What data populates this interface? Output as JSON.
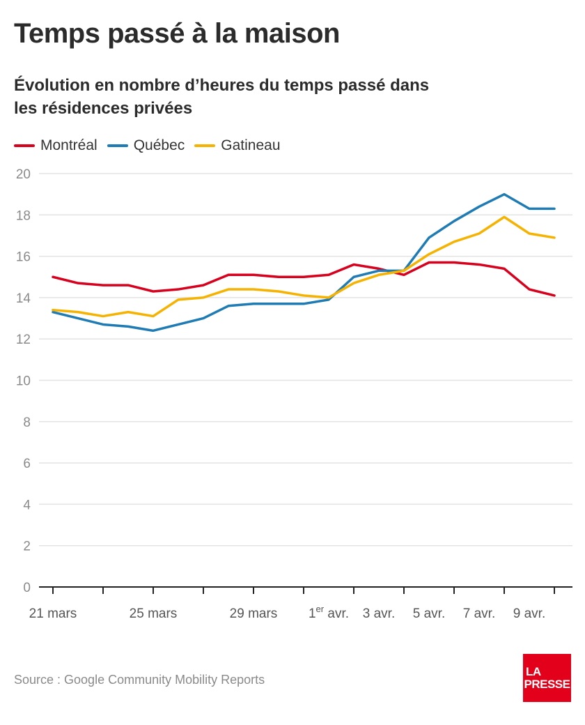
{
  "header": {
    "title": "Temps passé à la maison",
    "subtitle": "Évolution en nombre d’heures du temps passé dans les résidences privées"
  },
  "footer": {
    "source": "Source : Google Community Mobility Reports",
    "logo_line1": "LA",
    "logo_line2": "PRESSE"
  },
  "chart_data": {
    "type": "line",
    "title": "Temps passé à la maison",
    "subtitle": "Évolution en nombre d’heures du temps passé dans les résidences privées",
    "xlabel": "",
    "ylabel": "",
    "ylim": [
      0,
      20
    ],
    "yticks": [
      0,
      2,
      4,
      6,
      8,
      10,
      12,
      14,
      16,
      18,
      20
    ],
    "grid": true,
    "legend_position": "top-left",
    "x": [
      "21 mars",
      "22 mars",
      "23 mars",
      "24 mars",
      "25 mars",
      "26 mars",
      "27 mars",
      "28 mars",
      "29 mars",
      "30 mars",
      "31 mars",
      "1er avr.",
      "2 avr.",
      "3 avr.",
      "4 avr.",
      "5 avr.",
      "6 avr.",
      "7 avr.",
      "8 avr.",
      "9 avr.",
      "10 avr."
    ],
    "x_tick_marks": [
      0,
      2,
      4,
      6,
      8,
      10,
      12,
      14,
      16,
      18,
      20
    ],
    "x_tick_labels": [
      {
        "index": 0,
        "label": "21 mars"
      },
      {
        "index": 4,
        "label": "25 mars"
      },
      {
        "index": 8,
        "label": "29 mars"
      },
      {
        "index": 11,
        "label": "1",
        "sup": "er",
        "suffix": " avr."
      },
      {
        "index": 13,
        "label": "3 avr."
      },
      {
        "index": 15,
        "label": "5 avr."
      },
      {
        "index": 17,
        "label": "7 avr."
      },
      {
        "index": 19,
        "label": "9 avr."
      }
    ],
    "series": [
      {
        "name": "Montréal",
        "color": "#d7001d",
        "values": [
          15.0,
          14.7,
          14.6,
          14.6,
          14.3,
          14.4,
          14.6,
          15.1,
          15.1,
          15.0,
          15.0,
          15.1,
          15.6,
          15.4,
          15.1,
          15.7,
          15.7,
          15.6,
          15.4,
          14.4,
          14.1
        ]
      },
      {
        "name": "Québec",
        "color": "#1f7bb4",
        "values": [
          13.3,
          13.0,
          12.7,
          12.6,
          12.4,
          12.7,
          13.0,
          13.6,
          13.7,
          13.7,
          13.7,
          13.9,
          15.0,
          15.3,
          15.3,
          16.9,
          17.7,
          18.4,
          19.0,
          18.3,
          18.3
        ]
      },
      {
        "name": "Gatineau",
        "color": "#f5b200",
        "values": [
          13.4,
          13.3,
          13.1,
          13.3,
          13.1,
          13.9,
          14.0,
          14.4,
          14.4,
          14.3,
          14.1,
          14.0,
          14.7,
          15.1,
          15.3,
          16.1,
          16.7,
          17.1,
          17.9,
          17.1,
          16.9
        ]
      }
    ]
  }
}
